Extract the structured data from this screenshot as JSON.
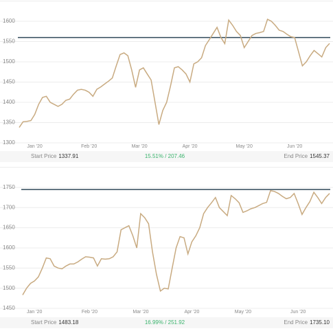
{
  "chart_data": [
    {
      "type": "line",
      "categories": [
        null,
        null,
        null,
        null,
        "Jan '20",
        null,
        null,
        null,
        null,
        null,
        null,
        null,
        null,
        null,
        null,
        null,
        null,
        null,
        "Feb '20",
        null,
        null,
        null,
        null,
        null,
        null,
        null,
        null,
        null,
        null,
        null,
        null,
        "Mar '20",
        null,
        null,
        null,
        null,
        null,
        null,
        null,
        null,
        null,
        null,
        null,
        null,
        "Apr '20",
        null,
        null,
        null,
        null,
        null,
        null,
        null,
        null,
        null,
        null,
        null,
        null,
        null,
        "May '20",
        null,
        null,
        null,
        null,
        null,
        null,
        null,
        null,
        null,
        null,
        null,
        null,
        "Jun '20",
        null,
        null,
        null,
        null,
        null,
        null,
        null,
        null,
        null
      ],
      "series": [
        {
          "color": "#c8aa80",
          "values": [
            1337.91,
            1352,
            1353,
            1355,
            1370,
            1395,
            1412,
            1415,
            1400,
            1395,
            1390,
            1395,
            1405,
            1408,
            1420,
            1430,
            1432,
            1430,
            1425,
            1415,
            1432,
            1438,
            1445,
            1452,
            1460,
            1490,
            1518,
            1522,
            1515,
            1480,
            1437,
            1480,
            1485,
            1470,
            1455,
            1400,
            1345,
            1380,
            1400,
            1440,
            1485,
            1488,
            1480,
            1470,
            1450,
            1495,
            1500,
            1510,
            1540,
            1555,
            1570,
            1585,
            1560,
            1545,
            1603,
            1590,
            1575,
            1565,
            1535,
            1550,
            1565,
            1570,
            1572,
            1575,
            1605,
            1600,
            1590,
            1578,
            1575,
            1568,
            1562,
            1560,
            1525,
            1490,
            1500,
            1515,
            1528,
            1520,
            1512,
            1535,
            1545.37
          ]
        }
      ],
      "reference_line": {
        "value": 1560,
        "color": "#2f4858"
      },
      "ylim": [
        1300,
        1650
      ],
      "yticks": [
        1300,
        1350,
        1400,
        1450,
        1500,
        1550,
        1600
      ],
      "grid": true,
      "start_label": "Start Price",
      "start_price": "1337.91",
      "change": "15.51% / 207.46",
      "end_label": "End Price",
      "end_price": "1545.37"
    },
    {
      "type": "line",
      "categories": [
        null,
        null,
        null,
        "Jan '20",
        null,
        null,
        null,
        null,
        null,
        null,
        null,
        null,
        null,
        null,
        null,
        null,
        null,
        "Feb '20",
        null,
        null,
        null,
        null,
        null,
        null,
        null,
        null,
        null,
        null,
        null,
        null,
        "Mar '20",
        null,
        null,
        null,
        null,
        null,
        null,
        null,
        null,
        null,
        null,
        null,
        null,
        "Apr '20",
        null,
        null,
        null,
        null,
        null,
        null,
        null,
        null,
        null,
        null,
        null,
        null,
        "May '20",
        null,
        null,
        null,
        null,
        null,
        null,
        null,
        null,
        null,
        null,
        null,
        null,
        null,
        "Jun '20",
        null,
        null,
        null,
        null,
        null,
        null,
        null,
        null
      ],
      "series": [
        {
          "color": "#c8aa80",
          "values": [
            1483.18,
            1500,
            1512,
            1518,
            1528,
            1550,
            1575,
            1573,
            1555,
            1550,
            1548,
            1555,
            1560,
            1560,
            1565,
            1572,
            1578,
            1577,
            1575,
            1555,
            1573,
            1572,
            1573,
            1578,
            1590,
            1645,
            1650,
            1655,
            1630,
            1600,
            1685,
            1675,
            1660,
            1590,
            1535,
            1493,
            1500,
            1498,
            1550,
            1600,
            1628,
            1625,
            1585,
            1615,
            1630,
            1650,
            1685,
            1700,
            1712,
            1725,
            1700,
            1690,
            1680,
            1730,
            1722,
            1712,
            1688,
            1692,
            1697,
            1700,
            1705,
            1710,
            1713,
            1742,
            1740,
            1735,
            1728,
            1722,
            1725,
            1735,
            1710,
            1683,
            1700,
            1715,
            1738,
            1725,
            1710,
            1725,
            1735.1
          ]
        }
      ],
      "reference_line": {
        "value": 1745,
        "color": "#2f4858"
      },
      "ylim": [
        1450,
        1800
      ],
      "yticks": [
        1450,
        1500,
        1550,
        1600,
        1650,
        1700,
        1750
      ],
      "grid": true,
      "start_label": "Start Price",
      "start_price": "1483.18",
      "change": "16.99% / 251.92",
      "end_label": "End Price",
      "end_price": "1735.10"
    }
  ]
}
